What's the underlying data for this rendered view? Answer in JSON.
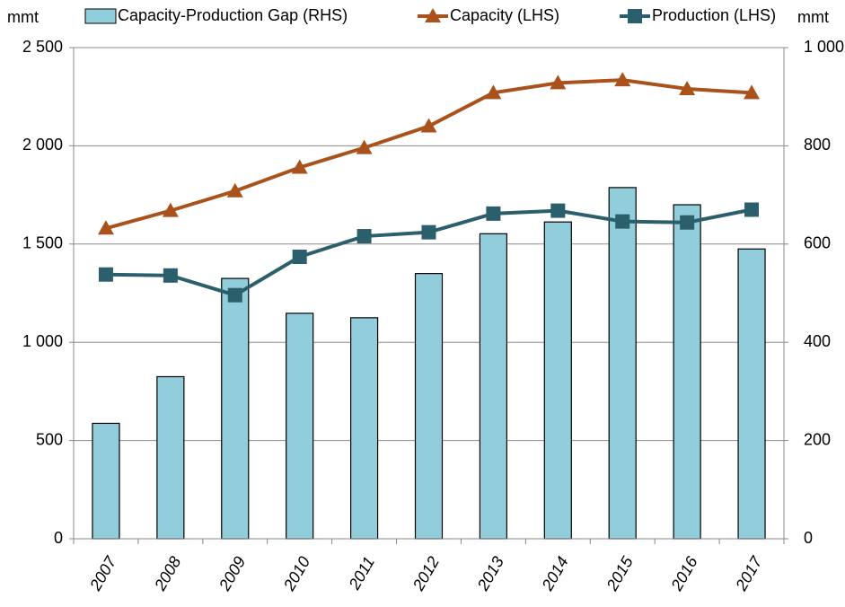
{
  "chart_data": {
    "type": "combo",
    "y_unit": "mmt",
    "y2_unit": "mmt",
    "categories": [
      "2007",
      "2008",
      "2009",
      "2010",
      "2011",
      "2012",
      "2013",
      "2014",
      "2015",
      "2016",
      "2017"
    ],
    "series": [
      {
        "name": "Capacity-Production Gap (RHS)",
        "type": "bar",
        "axis": "y2",
        "color": "#92cddc",
        "values": [
          235,
          330,
          530,
          459,
          450,
          540,
          621,
          645,
          715,
          680,
          590
        ]
      },
      {
        "name": "Capacity (LHS)",
        "type": "line",
        "marker": "triangle",
        "color": "#a9521c",
        "values": [
          1580,
          1670,
          1770,
          1890,
          1990,
          2100,
          2270,
          2320,
          2335,
          2290,
          2270
        ]
      },
      {
        "name": "Production (LHS)",
        "type": "line",
        "marker": "square",
        "color": "#2b5f6b",
        "values": [
          1345,
          1340,
          1240,
          1435,
          1540,
          1560,
          1655,
          1670,
          1615,
          1610,
          1675
        ]
      }
    ],
    "ylim": [
      0,
      2500
    ],
    "yticks": [
      0,
      500,
      {
        "value": 1000,
        "label": "1 000"
      },
      {
        "value": 1500,
        "label": "1 500"
      },
      {
        "value": 2000,
        "label": "2 000"
      },
      {
        "value": 2500,
        "label": "2 500"
      }
    ],
    "y2lim": [
      0,
      1000
    ],
    "y2ticks": [
      0,
      200,
      400,
      600,
      800,
      {
        "value": 1000,
        "label": "1 000"
      }
    ],
    "grid": true
  }
}
